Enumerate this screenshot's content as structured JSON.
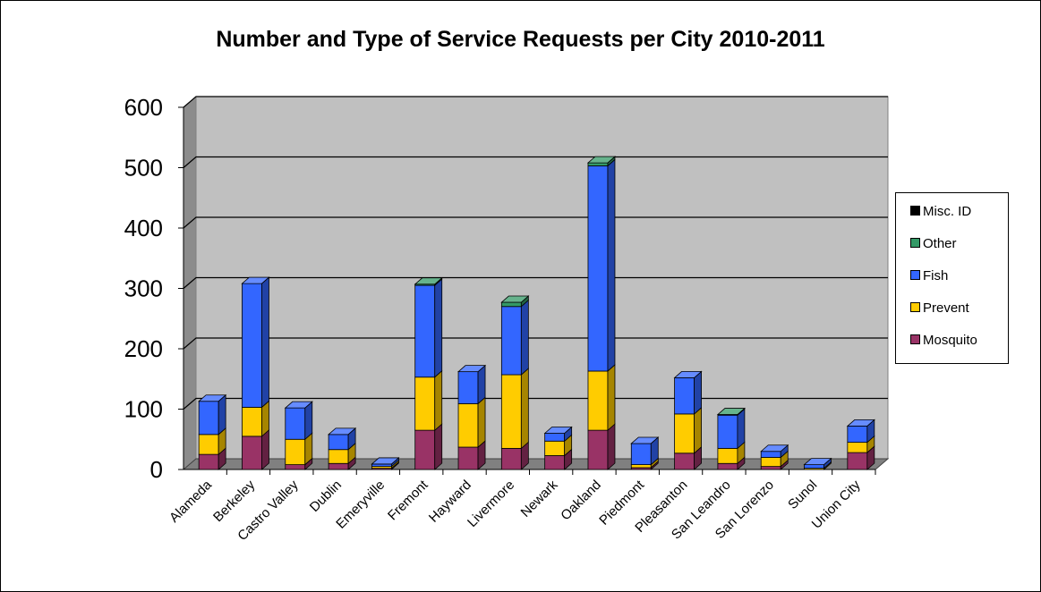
{
  "chart_data": {
    "type": "bar",
    "stacked": true,
    "three_d": true,
    "title": "Number and Type of Service Requests per City 2010-2011",
    "xlabel": "",
    "ylabel": "",
    "ylim": [
      0,
      600
    ],
    "yticks": [
      0,
      100,
      200,
      300,
      400,
      500,
      600
    ],
    "grid": true,
    "legend_position": "right",
    "categories": [
      "Alameda",
      "Berkeley",
      "Castro Valley",
      "Dublin",
      "Emeryville",
      "Fremont",
      "Hayward",
      "Livermore",
      "Newark",
      "Oakland",
      "Piedmont",
      "Pleasanton",
      "San Leandro",
      "San Lorenzo",
      "Sunol",
      "Union City"
    ],
    "series": [
      {
        "name": "Mosquito",
        "color": "#993366",
        "values": [
          25,
          55,
          8,
          10,
          2,
          65,
          37,
          35,
          23,
          65,
          3,
          27,
          10,
          5,
          0,
          28
        ]
      },
      {
        "name": "Prevent",
        "color": "#FFCC00",
        "values": [
          33,
          48,
          42,
          23,
          3,
          88,
          72,
          122,
          24,
          98,
          5,
          65,
          25,
          15,
          2,
          17
        ]
      },
      {
        "name": "Fish",
        "color": "#3366FF",
        "values": [
          55,
          205,
          52,
          25,
          4,
          152,
          53,
          113,
          13,
          340,
          35,
          60,
          55,
          10,
          6,
          27
        ]
      },
      {
        "name": "Other",
        "color": "#339966",
        "values": [
          0,
          0,
          0,
          0,
          0,
          2,
          0,
          7,
          0,
          5,
          0,
          0,
          1,
          0,
          0,
          0
        ]
      },
      {
        "name": "Misc. ID",
        "color": "#000000",
        "values": [
          0,
          0,
          0,
          0,
          0,
          0,
          0,
          0,
          0,
          0,
          0,
          0,
          0,
          0,
          0,
          0
        ]
      }
    ]
  }
}
